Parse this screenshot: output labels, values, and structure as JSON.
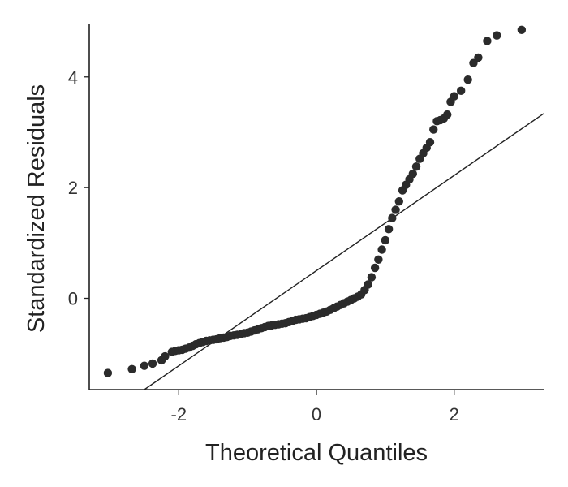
{
  "chart_data": {
    "type": "scatter",
    "title": "",
    "xlabel": "Theoretical Quantiles",
    "ylabel": "Standardized Residuals",
    "xlim": [
      -3.3,
      3.3
    ],
    "ylim": [
      -1.65,
      4.95
    ],
    "xticks": [
      {
        "value": -2,
        "label": "-2"
      },
      {
        "value": 0,
        "label": "0"
      },
      {
        "value": 2,
        "label": "2"
      }
    ],
    "yticks": [
      {
        "value": 0,
        "label": "0"
      },
      {
        "value": 2,
        "label": "2"
      },
      {
        "value": 4,
        "label": "4"
      }
    ],
    "grid": false,
    "colors": {
      "points": "#2b2b2b",
      "line": "#222222"
    },
    "reference_line": {
      "intercept": 0.5,
      "slope": 0.86
    },
    "series": [
      {
        "x": [
          -3.03,
          -2.68,
          -2.5,
          -2.38,
          -2.25,
          -2.2,
          -2.1,
          -2.05,
          -2.0,
          -1.95,
          -1.9,
          -1.85,
          -1.8,
          -1.75,
          -1.7,
          -1.65,
          -1.6,
          -1.55,
          -1.5,
          -1.45,
          -1.4,
          -1.35,
          -1.3,
          -1.25,
          -1.2,
          -1.15,
          -1.1,
          -1.05,
          -1.0,
          -0.95,
          -0.9,
          -0.85,
          -0.8,
          -0.75,
          -0.7,
          -0.65,
          -0.6,
          -0.55,
          -0.5,
          -0.45,
          -0.4,
          -0.35,
          -0.3,
          -0.25,
          -0.2,
          -0.15,
          -0.1,
          -0.05,
          0.0,
          0.05,
          0.1,
          0.15,
          0.2,
          0.25,
          0.3,
          0.35,
          0.4,
          0.45,
          0.5,
          0.55,
          0.6,
          0.65,
          0.7,
          0.75,
          0.8,
          0.85,
          0.9,
          0.95,
          1.0,
          1.05,
          1.1,
          1.15,
          1.2,
          1.25,
          1.3,
          1.35,
          1.4,
          1.45,
          1.5,
          1.55,
          1.6,
          1.65,
          1.7,
          1.75,
          1.8,
          1.85,
          1.9,
          1.95,
          2.0,
          2.1,
          2.2,
          2.28,
          2.35,
          2.48,
          2.62,
          2.98
        ],
        "y": [
          -1.35,
          -1.28,
          -1.22,
          -1.18,
          -1.12,
          -1.05,
          -0.97,
          -0.95,
          -0.94,
          -0.93,
          -0.91,
          -0.89,
          -0.86,
          -0.83,
          -0.81,
          -0.79,
          -0.77,
          -0.76,
          -0.75,
          -0.74,
          -0.72,
          -0.71,
          -0.7,
          -0.68,
          -0.67,
          -0.66,
          -0.65,
          -0.63,
          -0.62,
          -0.6,
          -0.58,
          -0.56,
          -0.54,
          -0.52,
          -0.5,
          -0.49,
          -0.48,
          -0.47,
          -0.46,
          -0.45,
          -0.43,
          -0.41,
          -0.39,
          -0.38,
          -0.37,
          -0.36,
          -0.34,
          -0.32,
          -0.3,
          -0.28,
          -0.26,
          -0.24,
          -0.21,
          -0.18,
          -0.15,
          -0.12,
          -0.09,
          -0.06,
          -0.03,
          0.0,
          0.03,
          0.07,
          0.15,
          0.25,
          0.38,
          0.55,
          0.7,
          0.88,
          1.05,
          1.25,
          1.45,
          1.6,
          1.75,
          1.95,
          2.05,
          2.15,
          2.25,
          2.38,
          2.52,
          2.62,
          2.72,
          2.82,
          3.05,
          3.2,
          3.22,
          3.25,
          3.32,
          3.55,
          3.65,
          3.75,
          3.95,
          4.25,
          4.35,
          4.65,
          4.75,
          4.85
        ]
      }
    ]
  }
}
